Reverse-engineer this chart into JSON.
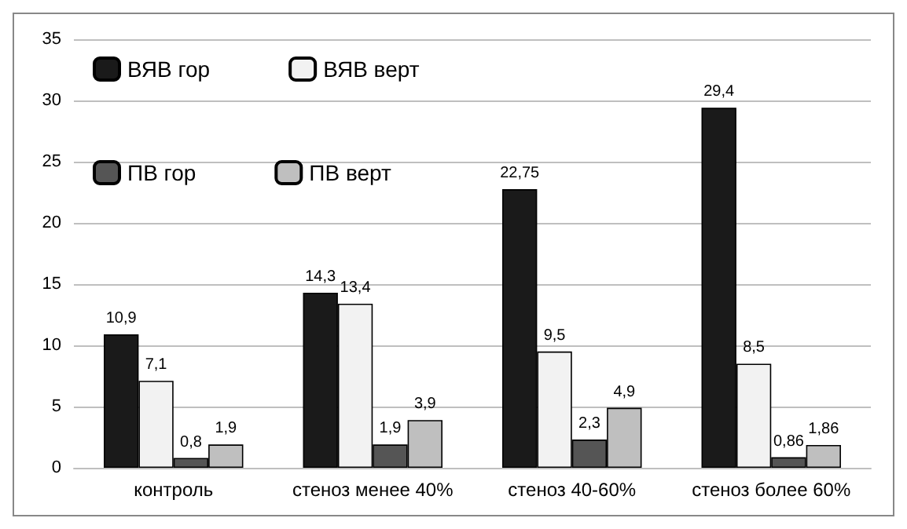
{
  "chart_data": {
    "type": "bar",
    "categories": [
      "контроль",
      "стеноз менее 40%",
      "стеноз 40-60%",
      "стеноз более 60%"
    ],
    "series": [
      {
        "name": "ВЯВ гор",
        "color": "#1a1a1a",
        "values": [
          10.9,
          14.3,
          22.75,
          29.4
        ],
        "value_labels": [
          "10,9",
          "14,3",
          "22,75",
          "29,4"
        ]
      },
      {
        "name": "ВЯВ верт",
        "color": "#f2f2f2",
        "values": [
          7.1,
          13.4,
          9.5,
          8.5
        ],
        "value_labels": [
          "7,1",
          "13,4",
          "9,5",
          "8,5"
        ]
      },
      {
        "name": "ПВ гор",
        "color": "#555555",
        "values": [
          0.8,
          1.9,
          2.3,
          0.86
        ],
        "value_labels": [
          "0,8",
          "1,9",
          "2,3",
          "0,86"
        ]
      },
      {
        "name": "ПВ верт",
        "color": "#bfbfbf",
        "values": [
          1.9,
          3.9,
          4.9,
          1.86
        ],
        "value_labels": [
          "1,9",
          "3,9",
          "4,9",
          "1,86"
        ]
      }
    ],
    "ylim": [
      0,
      35
    ],
    "yticks": [
      0,
      5,
      10,
      15,
      20,
      25,
      30,
      35
    ],
    "grid": "y",
    "legend": "top left"
  }
}
